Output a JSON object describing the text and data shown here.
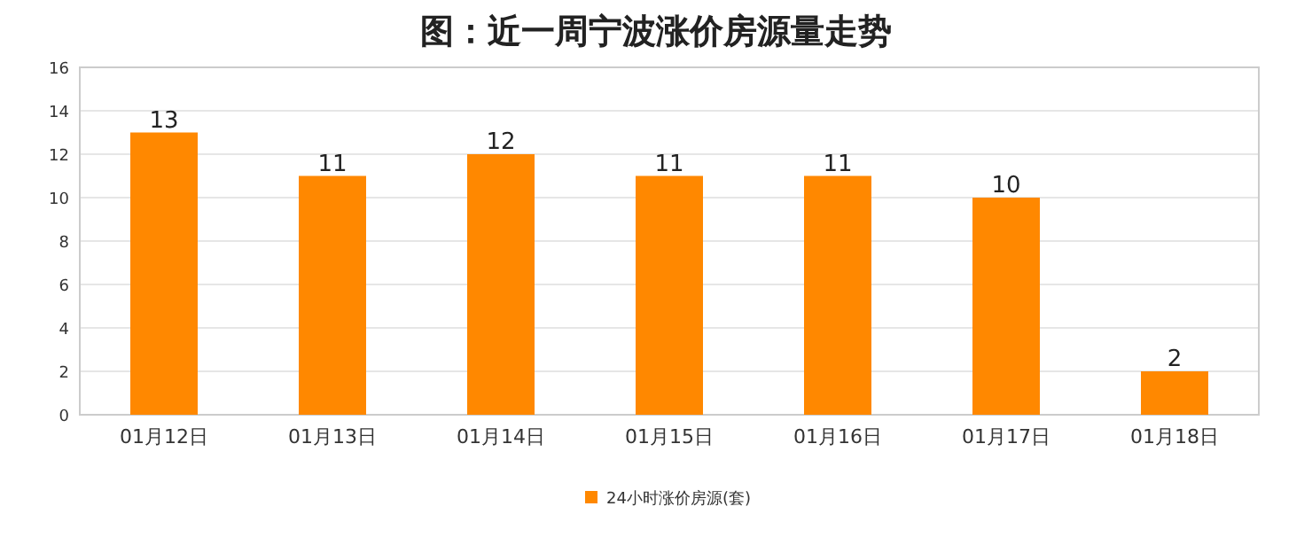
{
  "chart_data": {
    "type": "bar",
    "title": "图：近一周宁波涨价房源量走势",
    "categories": [
      "01月12日",
      "01月13日",
      "01月14日",
      "01月15日",
      "01月16日",
      "01月17日",
      "01月18日"
    ],
    "series": [
      {
        "name": "24小时涨价房源(套)",
        "color": "#ff8800",
        "values": [
          13,
          11,
          12,
          11,
          11,
          10,
          2
        ]
      }
    ],
    "ylim": [
      0,
      16
    ],
    "yticks": [
      0,
      2,
      4,
      6,
      8,
      10,
      12,
      14,
      16
    ],
    "grid": "y",
    "data_labels": true,
    "legend": "bottom"
  }
}
